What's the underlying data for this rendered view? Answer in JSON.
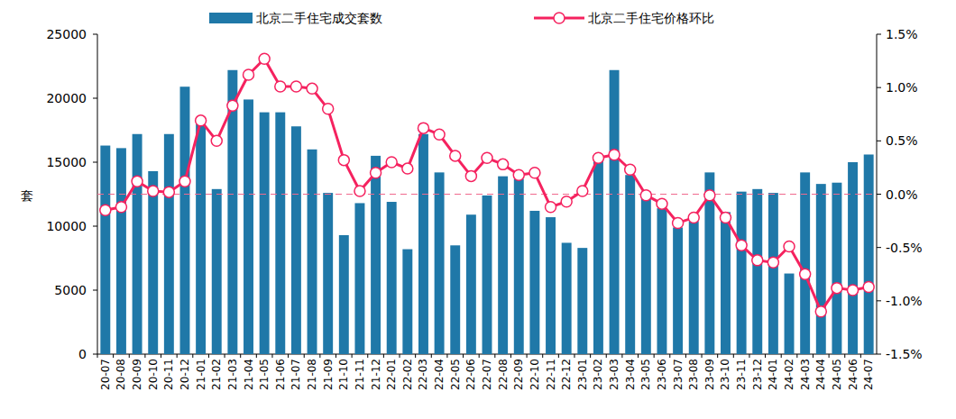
{
  "chart_data": {
    "type": "bar",
    "y_label": "套",
    "categories": [
      "20-07",
      "20-08",
      "20-09",
      "20-10",
      "20-11",
      "20-12",
      "21-01",
      "21-02",
      "21-03",
      "21-04",
      "21-05",
      "21-06",
      "21-07",
      "21-08",
      "21-09",
      "21-10",
      "21-11",
      "21-12",
      "22-01",
      "22-02",
      "22-03",
      "22-04",
      "22-05",
      "22-06",
      "22-07",
      "22-08",
      "22-09",
      "22-10",
      "22-11",
      "22-12",
      "23-01",
      "23-02",
      "23-03",
      "23-04",
      "23-05",
      "23-06",
      "23-07",
      "23-08",
      "23-09",
      "23-10",
      "23-11",
      "23-12",
      "24-01",
      "24-02",
      "24-03",
      "24-04",
      "24-05",
      "24-06",
      "24-07"
    ],
    "series": [
      {
        "name": "北京二手住宅成交套数",
        "type": "bar",
        "axis": "y",
        "color": "#1f78a8",
        "values": [
          16300,
          16100,
          17200,
          14300,
          17200,
          20900,
          18000,
          12900,
          22200,
          19900,
          18900,
          18900,
          17800,
          16000,
          12600,
          9300,
          11800,
          15500,
          11900,
          8200,
          17200,
          14200,
          8500,
          10900,
          12400,
          13900,
          13700,
          11200,
          10700,
          8700,
          8300,
          15100,
          22200,
          14000,
          12700,
          11400,
          9900,
          10400,
          14200,
          11100,
          12700,
          12900,
          12600,
          6300,
          14200,
          13300,
          13400,
          15000,
          15600
        ]
      },
      {
        "name": "北京二手住宅价格环比",
        "type": "line",
        "axis": "y2",
        "color": "#f5225f",
        "marker": "circle",
        "line_style": "solid",
        "values": [
          -0.15,
          -0.12,
          0.12,
          0.03,
          0.02,
          0.12,
          0.69,
          0.5,
          0.83,
          1.12,
          1.27,
          1.01,
          1.01,
          0.99,
          0.8,
          0.32,
          0.03,
          0.2,
          0.3,
          0.24,
          0.62,
          0.56,
          0.36,
          0.17,
          0.34,
          0.28,
          0.18,
          0.2,
          -0.12,
          -0.07,
          0.03,
          0.34,
          0.37,
          0.23,
          -0.01,
          -0.09,
          -0.27,
          -0.22,
          -0.01,
          -0.22,
          -0.48,
          -0.62,
          -0.64,
          -0.49,
          -0.75,
          -1.1,
          -0.88,
          -0.9,
          -0.87
        ]
      }
    ],
    "ylim": [
      0,
      25000
    ],
    "yticks": [
      0,
      5000,
      10000,
      15000,
      20000,
      25000
    ],
    "y2lim": [
      -1.5,
      1.5
    ],
    "y2ticks": [
      {
        "value": -1.5,
        "label": "-1.5%"
      },
      {
        "value": -1.0,
        "label": "-1.0%"
      },
      {
        "value": -0.5,
        "label": "-0.5%"
      },
      {
        "value": 0,
        "label": "0.0%"
      },
      {
        "value": 0.5,
        "label": "0.5%"
      },
      {
        "value": 1.0,
        "label": "1.0%"
      },
      {
        "value": 1.5,
        "label": "1.5%"
      }
    ],
    "y2_baseline": 0,
    "legend": "top",
    "grid": false
  }
}
